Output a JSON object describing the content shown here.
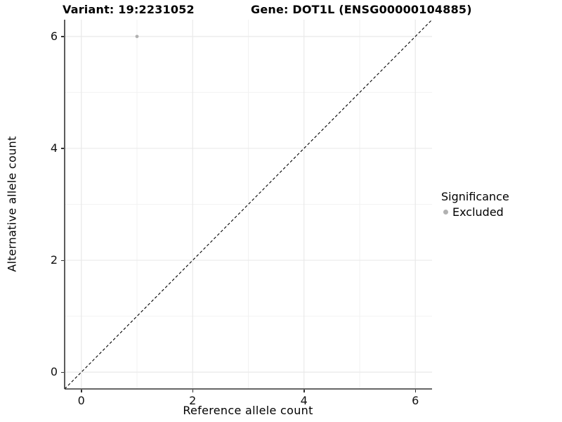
{
  "chart_data": {
    "type": "scatter",
    "title_left": "Variant: 19:2231052",
    "title_right": "Gene: DOT1L (ENSG00000104885)",
    "xlabel": "Reference allele count",
    "ylabel": "Alternative allele count",
    "xlim": [
      -0.3,
      6.3
    ],
    "ylim": [
      -0.3,
      6.3
    ],
    "x_ticks": [
      0,
      2,
      4,
      6
    ],
    "y_ticks": [
      0,
      2,
      4,
      6
    ],
    "x_minor_ticks": [
      1,
      3,
      5
    ],
    "y_minor_ticks": [
      1,
      3,
      5
    ],
    "grid": "on",
    "points": [
      {
        "x": 1,
        "y": 6,
        "series": "Excluded"
      }
    ],
    "reference_line": {
      "kind": "identity",
      "style": "dashed",
      "color": "#000000"
    },
    "legend": {
      "title": "Significance",
      "position": "right",
      "items": [
        {
          "label": "Excluded",
          "color": "#b1b1b1"
        }
      ]
    },
    "colors": {
      "grid_major": "#e9e9e9",
      "grid_minor": "#f2f2f2",
      "axis_line": "#333333",
      "tick_text": "#111111",
      "title_text": "#000000"
    }
  }
}
